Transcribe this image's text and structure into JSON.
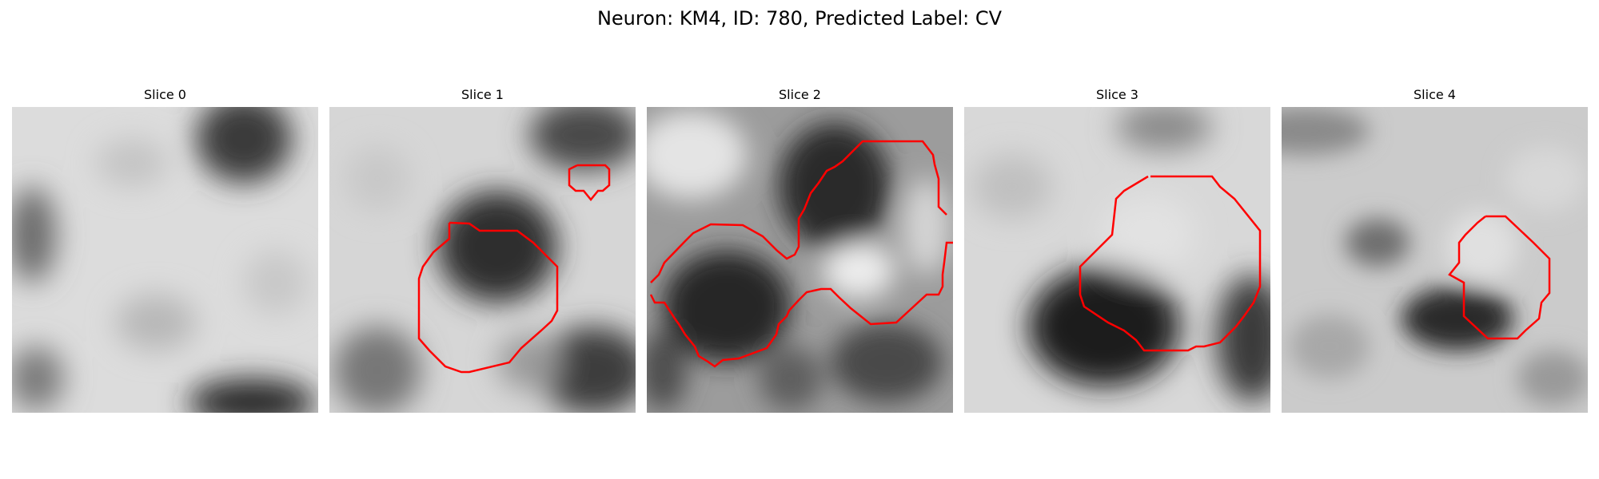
{
  "figure": {
    "title": "Neuron: KM4, ID: 780, Predicted Label: CV"
  },
  "panels": [
    {
      "title": "Slice 0"
    },
    {
      "title": "Slice 1"
    },
    {
      "title": "Slice 2"
    },
    {
      "title": "Slice 3"
    },
    {
      "title": "Slice 4"
    }
  ],
  "style": {
    "contour_color": "#ff0000",
    "colormap": "grayscale"
  }
}
